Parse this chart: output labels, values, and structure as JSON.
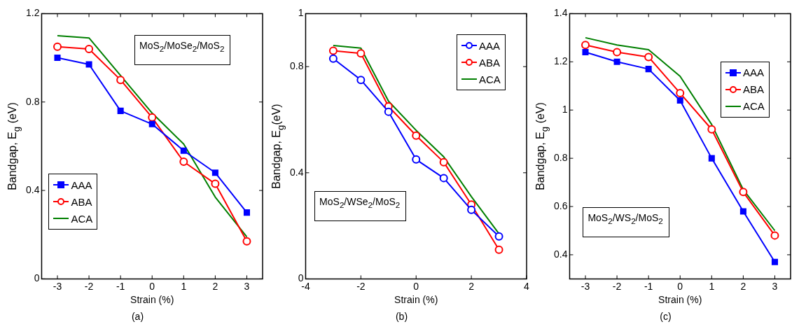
{
  "chart_data": [
    {
      "type": "line",
      "title": "MoS$_{2}$/MoSe$_{2}$/MoS$_{2}$",
      "xlabel": "Strain (%)",
      "ylabel": "Bandgap, E$_{g}$ (eV)",
      "annotations": [
        "(a)"
      ],
      "x": [
        -3,
        -2,
        -1,
        0,
        1,
        2,
        3
      ],
      "xlim": [
        -3.5,
        3.5
      ],
      "xticks": [
        -3,
        -2,
        -1,
        0,
        1,
        2,
        3
      ],
      "ylim": [
        0,
        1.2
      ],
      "yticks": [
        0,
        0.4,
        0.8,
        1.2
      ],
      "grid": false,
      "legend": "bottom left",
      "series": [
        {
          "name": "AAA",
          "color": "#0000ff",
          "marker": "square",
          "values": [
            1.0,
            0.97,
            0.76,
            0.7,
            0.58,
            0.48,
            0.3
          ]
        },
        {
          "name": "ABA",
          "color": "#ff0000",
          "marker": "circle",
          "values": [
            1.05,
            1.04,
            0.9,
            0.73,
            0.53,
            0.43,
            0.17
          ]
        },
        {
          "name": "ACA",
          "color": "#007f00",
          "marker": "none",
          "values": [
            1.1,
            1.09,
            0.92,
            0.75,
            0.61,
            0.37,
            0.19
          ]
        }
      ]
    },
    {
      "type": "line",
      "title": "MoS$_{2}$/WSe$_{2}$/MoS$_{2}$",
      "xlabel": "Strain (%)",
      "ylabel": "Bandgap, E$_{g}$(eV)",
      "annotations": [
        "(b)"
      ],
      "x": [
        -3,
        -2,
        -1,
        0,
        1,
        2,
        3
      ],
      "xlim": [
        -4,
        4
      ],
      "xticks": [
        -4,
        -2,
        0,
        2,
        4
      ],
      "ylim": [
        0,
        1
      ],
      "yticks": [
        0,
        0.4,
        0.8,
        1
      ],
      "grid": false,
      "legend": "top right",
      "series": [
        {
          "name": "AAA",
          "color": "#0000ff",
          "marker": "circle",
          "values": [
            0.83,
            0.75,
            0.63,
            0.45,
            0.38,
            0.26,
            0.16
          ]
        },
        {
          "name": "ABA",
          "color": "#ff0000",
          "marker": "circle",
          "values": [
            0.86,
            0.85,
            0.65,
            0.54,
            0.44,
            0.28,
            0.11
          ]
        },
        {
          "name": "ACA",
          "color": "#007f00",
          "marker": "none",
          "values": [
            0.88,
            0.87,
            0.67,
            0.56,
            0.46,
            0.31,
            0.17
          ]
        }
      ]
    },
    {
      "type": "line",
      "title": "MoS$_{2}$/WS$_{2}$/MoS$_{2}$",
      "xlabel": "Strain (%)",
      "ylabel": "Bandgap, E$_{g}$ (eV)",
      "annotations": [
        "(c)"
      ],
      "x": [
        -3,
        -2,
        -1,
        0,
        1,
        2,
        3
      ],
      "xlim": [
        -3.5,
        3.5
      ],
      "xticks": [
        -3,
        -2,
        -1,
        0,
        1,
        2,
        3
      ],
      "ylim": [
        0.3,
        1.4
      ],
      "yticks": [
        0.4,
        0.6,
        0.8,
        1,
        1.2,
        1.4
      ],
      "grid": false,
      "legend": "right",
      "series": [
        {
          "name": "AAA",
          "color": "#0000ff",
          "marker": "square",
          "values": [
            1.24,
            1.2,
            1.17,
            1.04,
            0.8,
            0.58,
            0.37
          ]
        },
        {
          "name": "ABA",
          "color": "#ff0000",
          "marker": "circle",
          "values": [
            1.27,
            1.24,
            1.22,
            1.07,
            0.92,
            0.66,
            0.48
          ]
        },
        {
          "name": "ACA",
          "color": "#007f00",
          "marker": "none",
          "values": [
            1.3,
            1.27,
            1.25,
            1.14,
            0.94,
            0.67,
            0.5
          ]
        }
      ]
    }
  ]
}
